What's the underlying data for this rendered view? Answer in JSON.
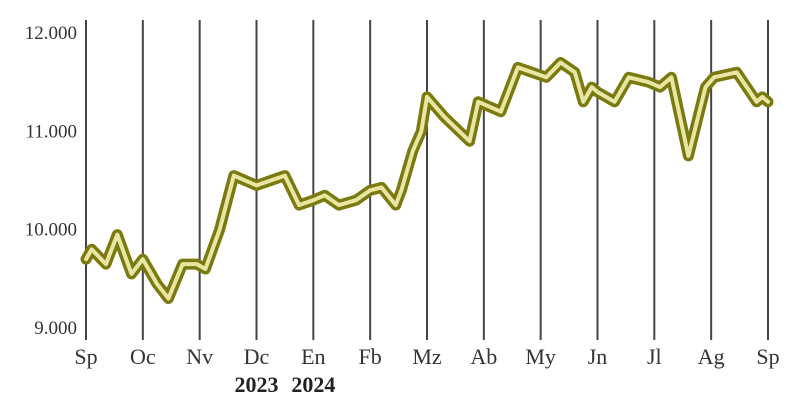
{
  "chart_data": {
    "type": "line",
    "y_ticks": [
      "12.000",
      "11.000",
      "10.000",
      "9.000"
    ],
    "y_tick_values": [
      12000,
      11000,
      10000,
      9000
    ],
    "ylim": [
      9000,
      12000
    ],
    "x_ticks": [
      "Sp",
      "Oc",
      "Nv",
      "Dc",
      "En",
      "Fb",
      "Mz",
      "Ab",
      "My",
      "Jn",
      "Jl",
      "Ag",
      "Sp"
    ],
    "year_labels": [
      {
        "label": "2023",
        "month_index": 3
      },
      {
        "label": "2024",
        "month_index": 4
      }
    ],
    "grid": "vertical",
    "colors": {
      "line": "#7a7a10",
      "fill": "#e8e6a2",
      "axis": "#444444"
    },
    "series": [
      {
        "x": [
          0,
          0.1,
          0.35,
          0.55,
          0.8,
          1.0,
          1.25,
          1.45,
          1.7,
          1.95,
          2.1,
          2.35,
          2.6,
          3.0,
          3.25,
          3.5,
          3.75,
          4.0,
          4.2,
          4.45,
          4.75,
          5.0,
          5.2,
          5.45,
          5.55,
          5.75,
          5.9,
          6.0,
          6.3,
          6.75,
          6.9,
          7.3,
          7.6,
          7.85,
          8.1,
          8.35,
          8.6,
          8.75,
          8.9,
          9.0,
          9.3,
          9.55,
          9.9,
          10.1,
          10.3,
          10.6,
          10.9,
          11.05,
          11.45,
          11.8,
          11.9,
          12.0
        ],
        "values": [
          9700,
          9800,
          9650,
          9950,
          9550,
          9700,
          9450,
          9300,
          9650,
          9650,
          9600,
          10000,
          10550,
          10450,
          10500,
          10550,
          10250,
          10300,
          10350,
          10250,
          10300,
          10400,
          10430,
          10250,
          10400,
          10800,
          11000,
          11350,
          11150,
          10900,
          11300,
          11200,
          11650,
          11600,
          11550,
          11700,
          11600,
          11300,
          11450,
          11400,
          11300,
          11550,
          11500,
          11450,
          11550,
          10750,
          11450,
          11550,
          11600,
          11300,
          11350,
          11300
        ]
      }
    ]
  }
}
